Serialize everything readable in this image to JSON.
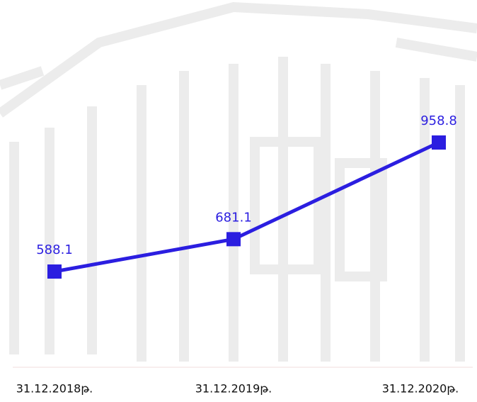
{
  "chart_data": {
    "type": "line",
    "categories": [
      "31.12.2018թ.",
      "31.12.2019թ.",
      "31.12.2020թ."
    ],
    "series": [
      {
        "color": "#2b1ee0",
        "values": [
          588.1,
          681.1,
          958.8
        ]
      }
    ]
  }
}
